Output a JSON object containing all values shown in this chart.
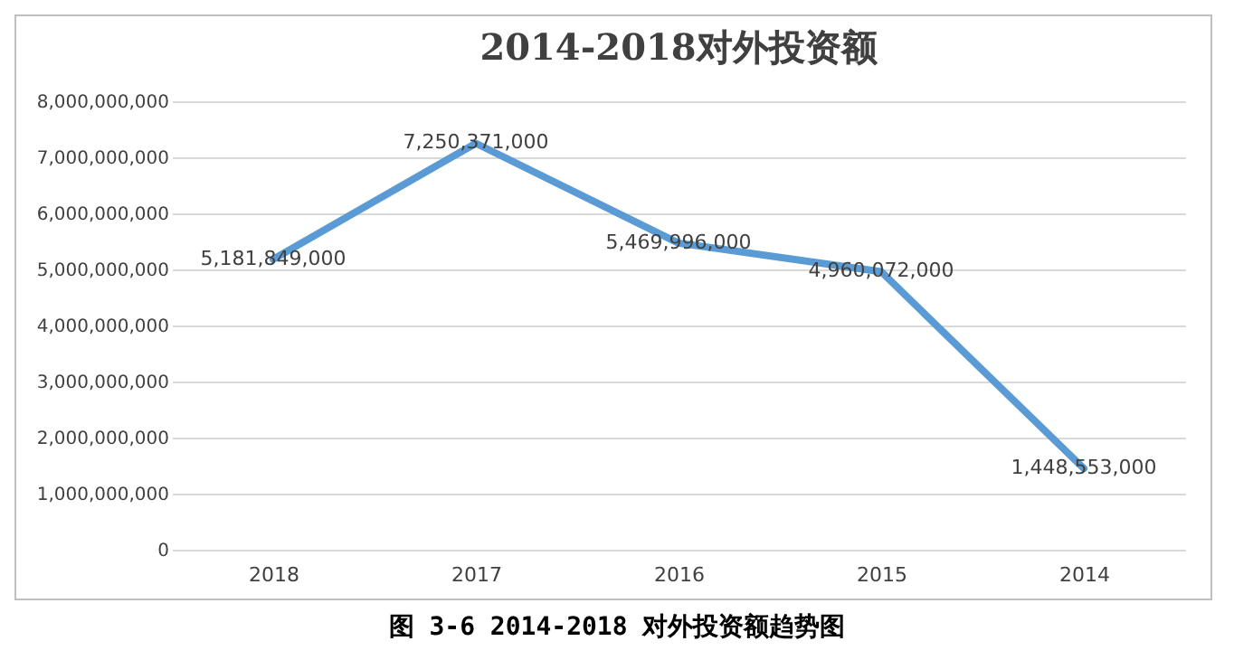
{
  "chart_data": {
    "type": "line",
    "title": "2014-2018对外投资额",
    "categories": [
      "2018",
      "2017",
      "2016",
      "2015",
      "2014"
    ],
    "series": [
      {
        "color": "#5b9bd5",
        "values": [
          5181849000,
          7250371000,
          5469996000,
          4960072000,
          1448553000
        ],
        "value_labels": [
          "5,181,849,000",
          "7,250,371,000",
          "5,469,996,000",
          "4,960,072,000",
          "1,448,553,000"
        ]
      }
    ],
    "ylim": [
      0,
      8000000000
    ],
    "yticks": [
      0,
      {
        "value": 1000000000,
        "label": "1,000,000,000"
      },
      {
        "value": 2000000000,
        "label": "2,000,000,000"
      },
      {
        "value": 3000000000,
        "label": "3,000,000,000"
      },
      {
        "value": 4000000000,
        "label": "4,000,000,000"
      },
      {
        "value": 5000000000,
        "label": "5,000,000,000"
      },
      {
        "value": 6000000000,
        "label": "6,000,000,000"
      },
      {
        "value": 7000000000,
        "label": "7,000,000,000"
      },
      {
        "value": 8000000000,
        "label": "8,000,000,000"
      }
    ],
    "grid": "y",
    "legend": false,
    "marker": "none",
    "line_style": "solid",
    "annotations": [
      "图 3-6 2014-2018 对外投资额趋势图"
    ]
  }
}
